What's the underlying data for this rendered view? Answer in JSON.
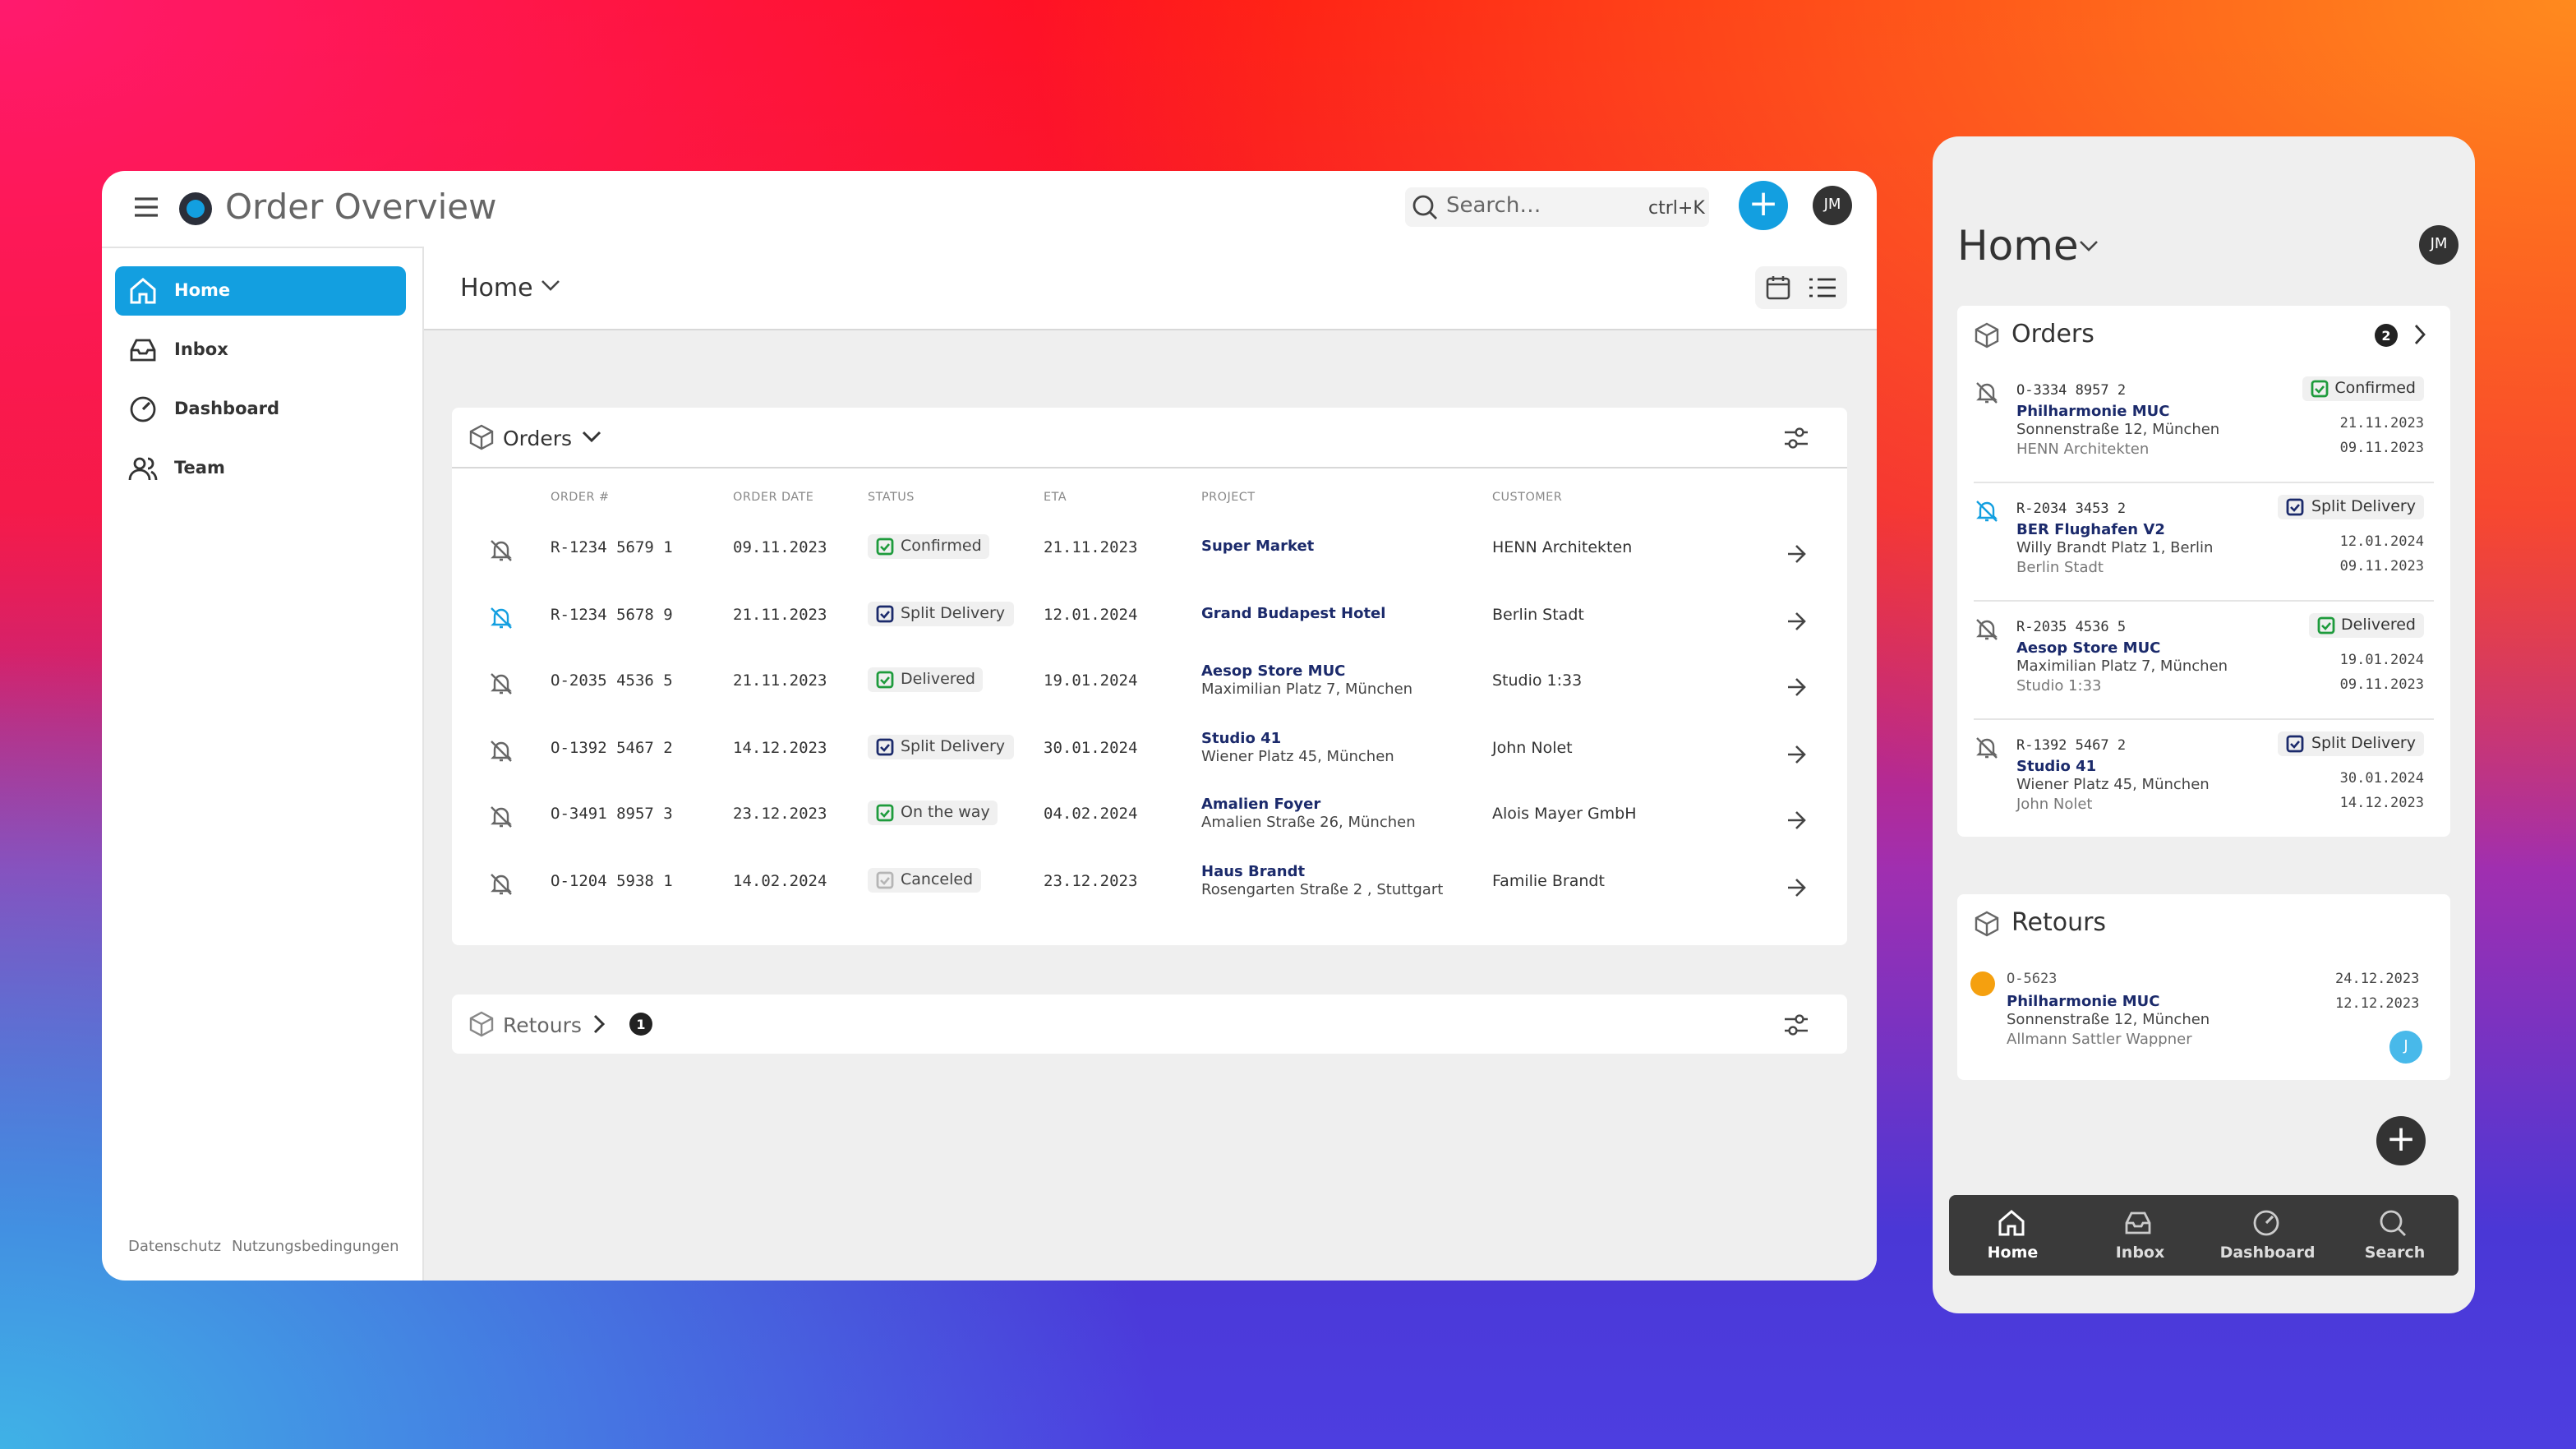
{
  "desktop": {
    "title": "Order Overview",
    "search": "Search…",
    "shortcut": "ctrl+K",
    "avatar": "JM",
    "nav": [
      "Home",
      "Inbox",
      "Dashboard",
      "Team"
    ],
    "footer_links": [
      "Datenschutz",
      "Nutzungsbedingungen"
    ],
    "breadcrumb": "Home",
    "orders": {
      "title": "Orders",
      "columns": [
        "ORDER #",
        "ORDER DATE",
        "STATUS",
        "ETA",
        "PROJECT",
        "CUSTOMER"
      ],
      "rows": [
        {
          "order": "R-1234 5679 1",
          "date": "09.11.2023",
          "status": "Confirmed",
          "status_color": "#1e9b3c",
          "eta": "21.11.2023",
          "project": "Super Market",
          "customer": "HENN Architekten",
          "bell_color": "#666666"
        },
        {
          "order": "R-1234 5678 9",
          "date": "21.11.2023",
          "status": "Split Delivery",
          "status_color": "#1b2a6b",
          "eta": "12.01.2024",
          "project": "Grand Budapest Hotel",
          "customer": "Berlin Stadt",
          "bell_color": "#139fe0"
        },
        {
          "order": "O-2035 4536 5",
          "date": "21.11.2023",
          "status": "Delivered",
          "status_color": "#1e9b3c",
          "eta": "19.01.2024",
          "project": "Aesop Store MUC",
          "address": "Maximilian Platz 7, München",
          "customer": "Studio 1:33",
          "bell_color": "#666666"
        },
        {
          "order": "O-1392 5467 2",
          "date": "14.12.2023",
          "status": "Split Delivery",
          "status_color": "#1b2a6b",
          "eta": "30.01.2024",
          "project": "Studio 41",
          "address": "Wiener Platz 45, München",
          "customer": "John Nolet",
          "bell_color": "#666666"
        },
        {
          "order": "O-3491 8957 3",
          "date": "23.12.2023",
          "status": "On the way",
          "status_color": "#1e9b3c",
          "eta": "04.02.2024",
          "project": "Amalien Foyer",
          "address": "Amalien Straße 26, München",
          "customer": "Alois Mayer GmbH",
          "bell_color": "#666666"
        },
        {
          "order": "O-1204 5938 1",
          "date": "14.02.2024",
          "status": "Canceled",
          "status_color": "#b5b5b5",
          "eta": "23.12.2023",
          "project": "Haus Brandt",
          "address": "Rosengarten Straße 2 , Stuttgart",
          "customer": "Familie Brandt",
          "bell_color": "#666666"
        }
      ]
    },
    "retours": {
      "title": "Retours",
      "count": 1
    }
  },
  "mobile": {
    "title": "Home",
    "avatar": "JM",
    "orders": {
      "title": "Orders",
      "count": 2,
      "items": [
        {
          "order": "O-3334 8957 2",
          "project": "Philharmonie MUC",
          "address": "Sonnenstraße 12, München",
          "customer": "HENN Architekten",
          "status": "Confirmed",
          "status_color": "#1e9b3c",
          "eta": "21.11.2023",
          "date": "09.11.2023",
          "bell_color": "#666666"
        },
        {
          "order": "R-2034 3453 2",
          "project": "BER Flughafen V2",
          "address": "Willy Brandt Platz 1, Berlin",
          "customer": "Berlin Stadt",
          "status": "Split Delivery",
          "status_color": "#1b2a6b",
          "eta": "12.01.2024",
          "date": "09.11.2023",
          "bell_color": "#139fe0"
        },
        {
          "order": "R-2035 4536 5",
          "project": "Aesop Store MUC",
          "address": "Maximilian Platz 7, München",
          "customer": "Studio 1:33",
          "status": "Delivered",
          "status_color": "#1e9b3c",
          "eta": "19.01.2024",
          "date": "09.11.2023",
          "bell_color": "#666666"
        },
        {
          "order": "R-1392 5467 2",
          "project": "Studio 41",
          "address": "Wiener Platz 45, München",
          "customer": "John Nolet",
          "status": "Split Delivery",
          "status_color": "#1b2a6b",
          "eta": "30.01.2024",
          "date": "14.12.2023",
          "bell_color": "#666666"
        }
      ]
    },
    "retours": {
      "title": "Retours",
      "item": {
        "order": "O-5623",
        "project": "Philharmonie MUC",
        "address": "Sonnenstraße 12, München",
        "customer": "Allmann Sattler Wappner",
        "date": "24.12.2023",
        "eta": "12.12.2023",
        "avatar": "J"
      }
    },
    "nav": [
      "Home",
      "Inbox",
      "Dashboard",
      "Search"
    ]
  }
}
